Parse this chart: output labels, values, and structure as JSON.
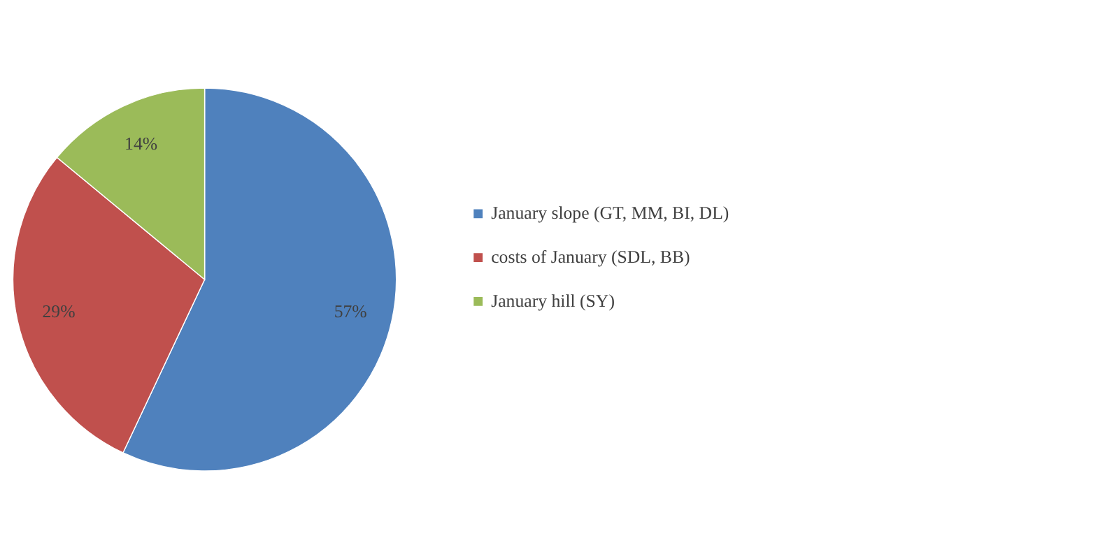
{
  "chart_data": {
    "type": "pie",
    "categories": [
      "January slope (GT, MM, BI, DL)",
      "costs of January (SDL, BB)",
      "January hill (SY)"
    ],
    "values": [
      57,
      29,
      14
    ],
    "colors": [
      "#4f81bd",
      "#c0504d",
      "#9bbb59"
    ],
    "value_labels": [
      "57%",
      "29%",
      "14%"
    ],
    "legend": "right"
  }
}
